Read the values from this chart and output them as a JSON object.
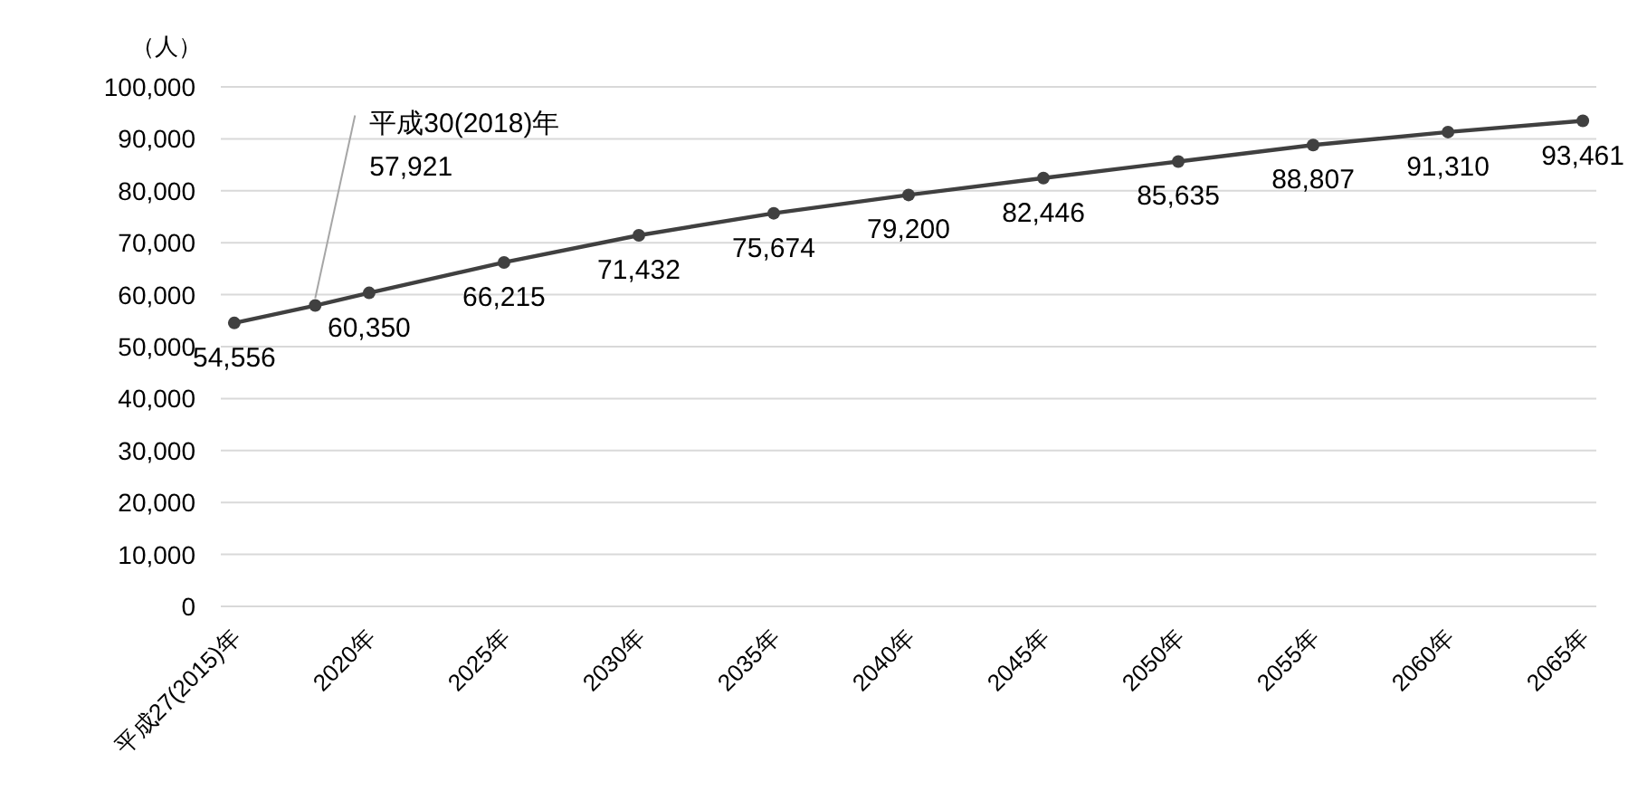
{
  "chart_data": {
    "type": "line",
    "ylabel": "（人）",
    "x": [
      2015,
      2018,
      2020,
      2025,
      2030,
      2035,
      2040,
      2045,
      2050,
      2055,
      2060,
      2065
    ],
    "series": [
      {
        "color": "#404040",
        "values": [
          54556,
          57921,
          60350,
          66215,
          71432,
          75674,
          79200,
          82446,
          85635,
          88807,
          91310,
          93461
        ]
      }
    ],
    "value_labels": [
      "54,556",
      "57,921",
      "60,350",
      "66,215",
      "71,432",
      "75,674",
      "79,200",
      "82,446",
      "85,635",
      "88,807",
      "91,310",
      "93,461"
    ],
    "annotations": [
      {
        "text": "平成30(2018)年",
        "x": 2018,
        "y": 57921
      }
    ],
    "xlim": [
      2014.5,
      2065.5
    ],
    "xticks": [
      {
        "value": 2015,
        "label": "平成27(2015)年"
      },
      {
        "value": 2020,
        "label": "2020年"
      },
      {
        "value": 2025,
        "label": "2025年"
      },
      {
        "value": 2030,
        "label": "2030年"
      },
      {
        "value": 2035,
        "label": "2035年"
      },
      {
        "value": 2040,
        "label": "2040年"
      },
      {
        "value": 2045,
        "label": "2045年"
      },
      {
        "value": 2050,
        "label": "2050年"
      },
      {
        "value": 2055,
        "label": "2055年"
      },
      {
        "value": 2060,
        "label": "2060年"
      },
      {
        "value": 2065,
        "label": "2065年"
      }
    ],
    "ylim": [
      0,
      100000
    ],
    "yticks": [
      0,
      {
        "value": 10000,
        "label": "10,000"
      },
      {
        "value": 20000,
        "label": "20,000"
      },
      {
        "value": 30000,
        "label": "30,000"
      },
      {
        "value": 40000,
        "label": "40,000"
      },
      {
        "value": 50000,
        "label": "50,000"
      },
      {
        "value": 60000,
        "label": "60,000"
      },
      {
        "value": 70000,
        "label": "70,000"
      },
      {
        "value": 80000,
        "label": "80,000"
      },
      {
        "value": 90000,
        "label": "90,000"
      },
      {
        "value": 100000,
        "label": "100,000"
      }
    ],
    "grid": "y",
    "marker": "circle",
    "line_style": "solid"
  }
}
